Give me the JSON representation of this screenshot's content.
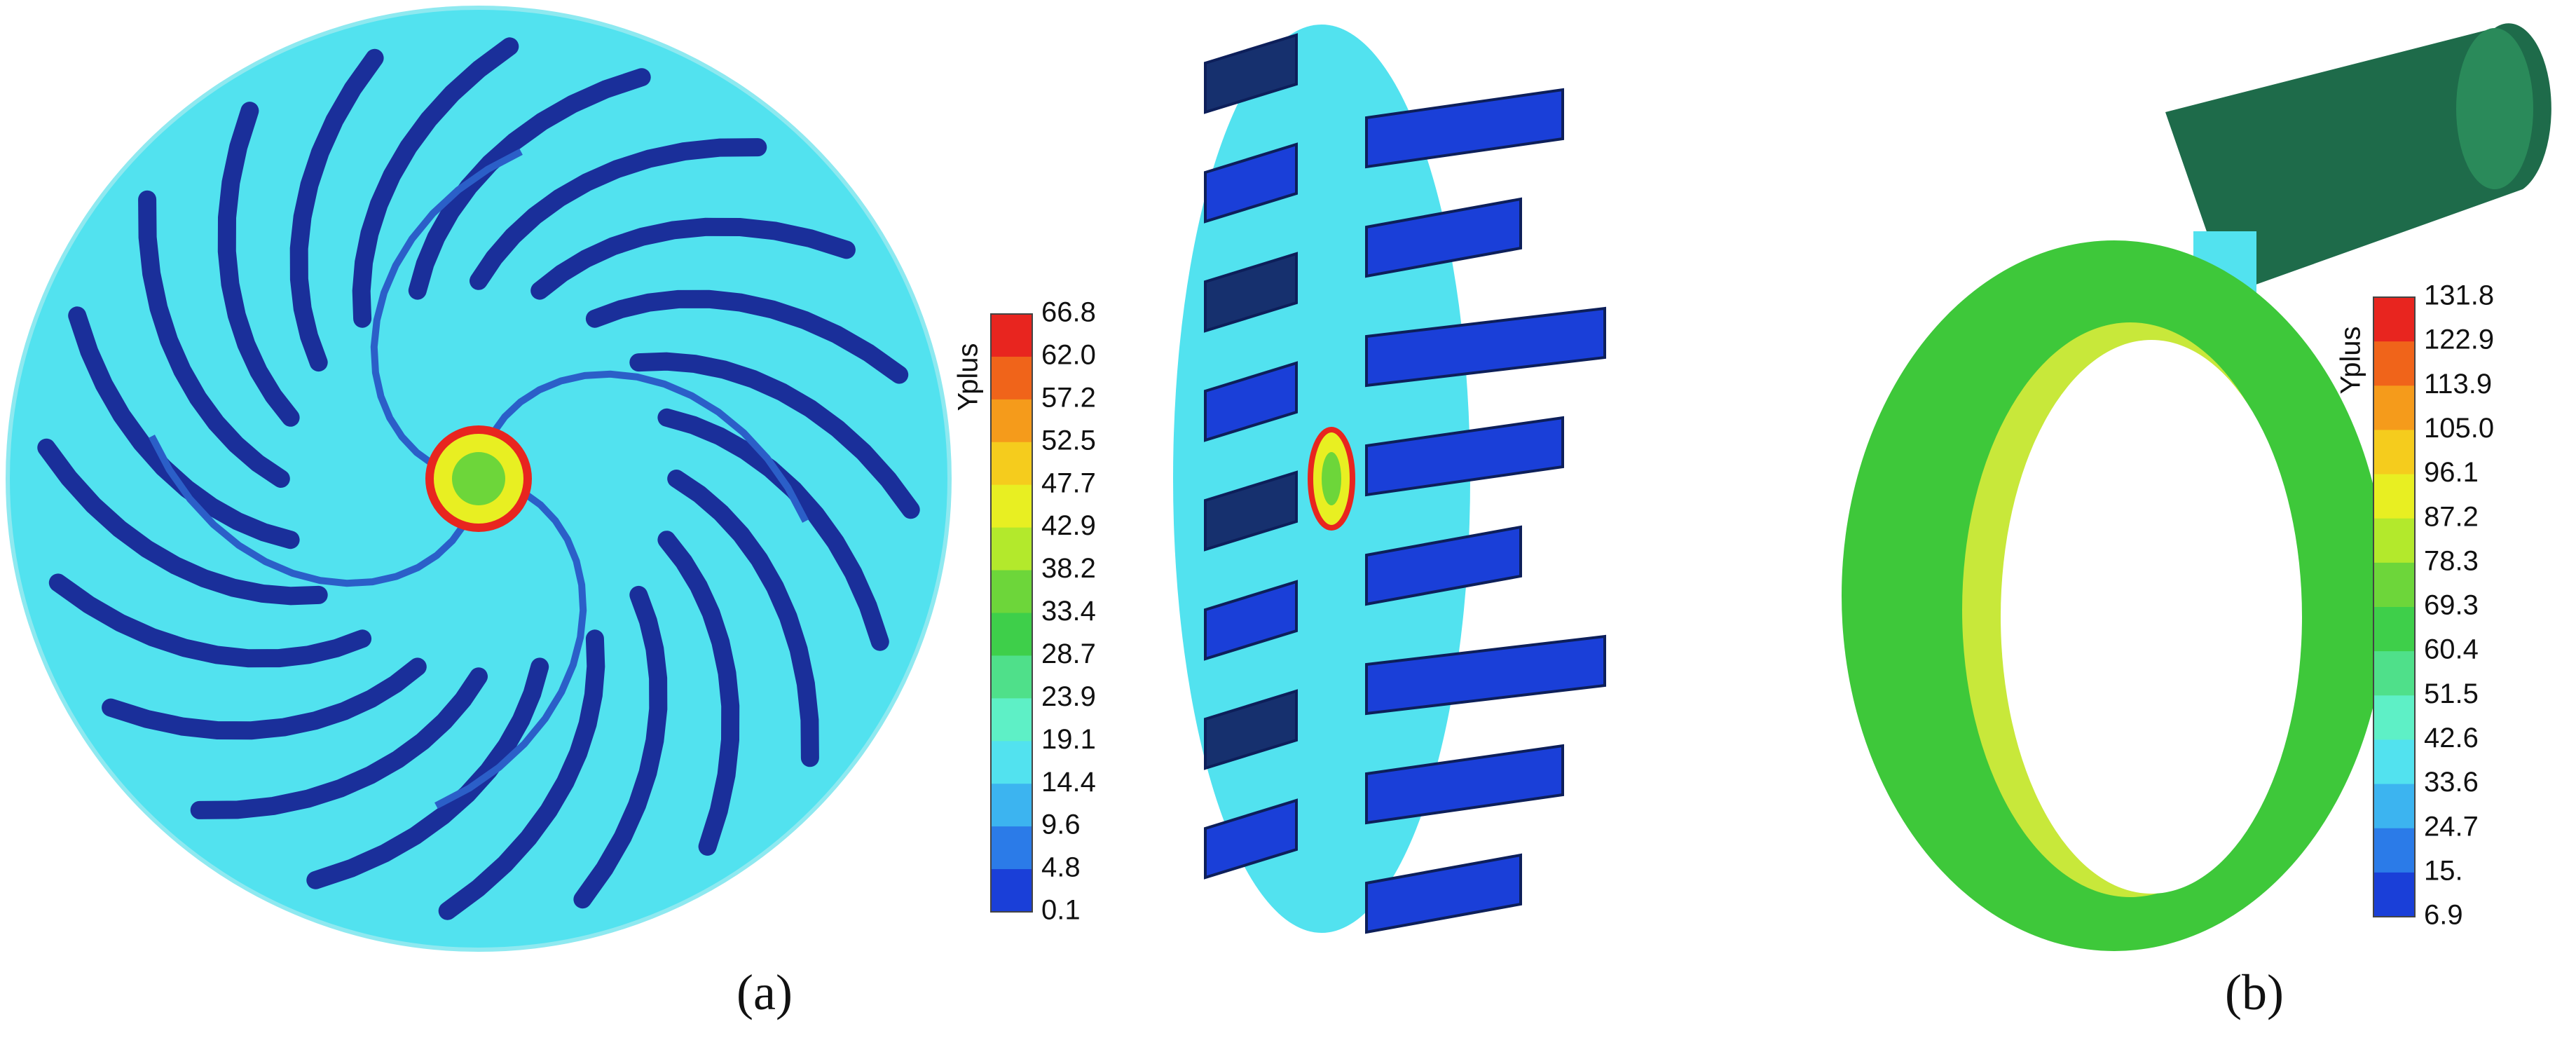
{
  "figure": {
    "colorbars": [
      {
        "title": "Yplus",
        "labels": [
          "66.8",
          "62.0",
          "57.2",
          "52.5",
          "47.7",
          "42.9",
          "38.2",
          "33.4",
          "28.7",
          "23.9",
          "19.1",
          "14.4",
          "9.6",
          "4.8",
          "0.1"
        ]
      },
      {
        "title": "Yplus",
        "labels": [
          "131.8",
          "122.9",
          "113.9",
          "105.0",
          "96.1",
          "87.2",
          "78.3",
          "69.3",
          "60.4",
          "51.5",
          "42.6",
          "33.6",
          "24.7",
          "15.",
          "6.9"
        ]
      }
    ],
    "colors": [
      "#e8251f",
      "#f0641a",
      "#f59b1b",
      "#f5cc1d",
      "#e8ef22",
      "#b3e92c",
      "#6dd63a",
      "#3ecf4a",
      "#4fe08a",
      "#5ef0c6",
      "#52e2ef",
      "#3cb4f0",
      "#2b7be8",
      "#1a3fd8"
    ],
    "captions": [
      "(a)",
      "(b)"
    ]
  }
}
